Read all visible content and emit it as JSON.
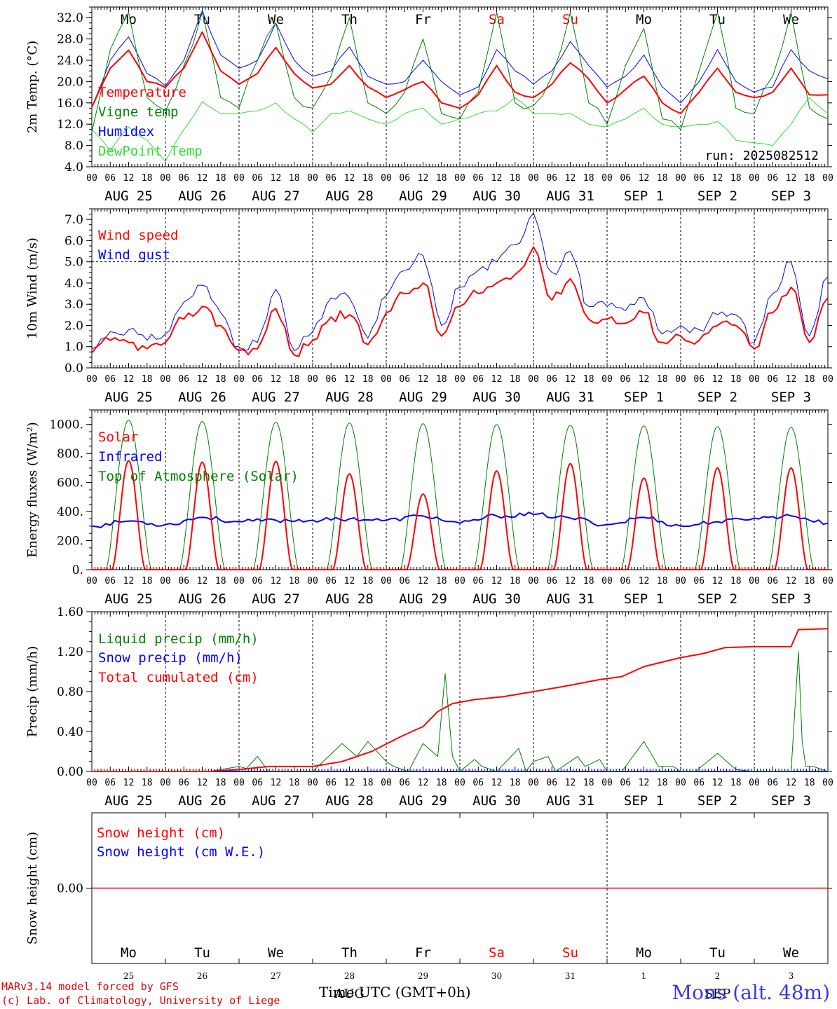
{
  "run_label": "run: 2025082512",
  "station": "Mons (alt. 48m)",
  "xlabel": "Time UTC (GMT+0h)",
  "footer": [
    "MARv3.14 model forced by GFS",
    "(c) Lab. of Climatology, University of Liege"
  ],
  "hour_ticks": [
    "00",
    "06",
    "12",
    "18"
  ],
  "date_labels": [
    "AUG 25",
    "AUG 26",
    "AUG 27",
    "AUG 28",
    "AUG 29",
    "AUG 30",
    "AUG 31",
    "SEP  1",
    "SEP  2",
    "SEP  3"
  ],
  "day_labels": [
    "Mo",
    "Tu",
    "We",
    "Th",
    "Fr",
    "Sa",
    "Su",
    "Mo",
    "Tu",
    "We"
  ],
  "weekend_days": [
    5,
    6
  ],
  "bottom_day_numbers": [
    "25",
    "26",
    "27",
    "28",
    "29",
    "30",
    "31",
    "1",
    "2",
    "3"
  ],
  "bottom_month_labels": [
    "AUG",
    "SEP"
  ],
  "colors": {
    "red": "#ff0000",
    "green": "#008000",
    "blue": "#0000ff",
    "lightgreen": "#33dd33"
  },
  "chart_data": [
    {
      "type": "line",
      "ylabel": "2m Temp. (°C)",
      "ylim": [
        4,
        34
      ],
      "yticks": [
        "4.0",
        "8.0",
        "12.0",
        "16.0",
        "20.0",
        "24.0",
        "28.0",
        "32.0"
      ],
      "x_days": [
        0,
        0.25,
        0.5,
        0.75,
        1,
        1.25,
        1.5,
        1.75,
        2,
        2.25,
        2.5,
        2.75,
        3,
        3.25,
        3.5,
        3.75,
        4,
        4.25,
        4.5,
        4.75,
        5,
        5.25,
        5.5,
        5.75,
        6,
        6.25,
        6.5,
        6.75,
        7,
        7.25,
        7.5,
        7.75,
        8,
        8.25,
        8.5,
        8.75,
        9,
        9.25,
        9.5,
        9.75,
        10
      ],
      "series": [
        {
          "name": "Temperature",
          "color": "red",
          "values": [
            15.2,
            22.5,
            25.9,
            20.0,
            18.9,
            22.5,
            29.3,
            22.0,
            19.5,
            21.5,
            26.4,
            21.5,
            18.8,
            19.5,
            23.0,
            19.0,
            17.0,
            18.5,
            20.0,
            16.0,
            15.0,
            17.5,
            23.0,
            18.0,
            17.0,
            19.5,
            23.5,
            20.5,
            16.0,
            18.5,
            21.0,
            16.0,
            14.0,
            18.0,
            22.5,
            18.0,
            17.0,
            18.0,
            22.5,
            17.5,
            17.5
          ]
        },
        {
          "name": "Vigne temp",
          "color": "green",
          "values": [
            10.5,
            26.0,
            33.0,
            17.0,
            14.5,
            23.0,
            33.0,
            17.0,
            15.0,
            24.0,
            31.0,
            17.0,
            15.0,
            21.0,
            32.0,
            16.0,
            14.0,
            18.0,
            28.0,
            14.0,
            13.0,
            18.0,
            33.0,
            16.0,
            15.5,
            21.0,
            33.0,
            16.0,
            12.0,
            23.0,
            30.0,
            13.0,
            11.0,
            22.0,
            33.0,
            15.0,
            14.0,
            21.0,
            33.0,
            15.0,
            13.0
          ]
        },
        {
          "name": "Humidex",
          "color": "blue",
          "values": [
            15.2,
            24.0,
            28.4,
            21.5,
            19.2,
            24.0,
            33.3,
            25.0,
            22.5,
            24.0,
            31.0,
            24.0,
            21.0,
            22.0,
            26.5,
            21.0,
            19.5,
            20.0,
            24.0,
            20.0,
            17.5,
            19.0,
            26.0,
            22.0,
            19.5,
            22.0,
            27.5,
            23.0,
            19.0,
            21.0,
            25.0,
            19.0,
            16.0,
            20.0,
            26.0,
            20.0,
            18.0,
            19.0,
            26.0,
            22.0,
            20.5
          ]
        },
        {
          "name": "DewPoint Temp",
          "color": "lightgreen",
          "values": [
            11.0,
            7.0,
            11.5,
            9.0,
            5.0,
            11.0,
            16.2,
            14.0,
            14.0,
            14.5,
            16.0,
            13.0,
            10.5,
            14.0,
            14.5,
            13.0,
            12.0,
            14.0,
            15.0,
            12.0,
            13.0,
            14.0,
            14.5,
            17.0,
            14.0,
            14.0,
            14.0,
            12.0,
            11.5,
            13.0,
            15.0,
            12.0,
            11.5,
            12.0,
            12.5,
            9.0,
            8.5,
            8.0,
            12.0,
            17.0,
            14.0
          ]
        }
      ]
    },
    {
      "type": "line",
      "ylabel": "10m Wind (m/s)",
      "ylim": [
        0,
        7.5
      ],
      "yticks": [
        "0.0",
        "1.0",
        "2.0",
        "3.0",
        "4.0",
        "5.0",
        "6.0",
        "7.0"
      ],
      "reference_line": 5.0,
      "x_days": [
        0,
        0.25,
        0.5,
        0.75,
        1,
        1.25,
        1.5,
        1.75,
        2,
        2.25,
        2.5,
        2.75,
        3,
        3.25,
        3.5,
        3.75,
        4,
        4.25,
        4.5,
        4.75,
        5,
        5.25,
        5.5,
        5.75,
        6,
        6.25,
        6.5,
        6.75,
        7,
        7.25,
        7.5,
        7.75,
        8,
        8.25,
        8.5,
        8.75,
        9,
        9.25,
        9.5,
        9.75,
        10
      ],
      "series": [
        {
          "name": "Wind speed",
          "color": "red",
          "values": [
            0.7,
            1.3,
            1.2,
            0.9,
            1.2,
            2.3,
            2.9,
            2.0,
            0.8,
            0.9,
            2.8,
            0.6,
            1.3,
            2.4,
            2.5,
            1.1,
            2.6,
            3.5,
            4.0,
            1.5,
            2.9,
            3.5,
            4.0,
            4.4,
            5.7,
            3.2,
            4.2,
            2.3,
            2.3,
            2.1,
            2.6,
            1.2,
            1.5,
            1.3,
            2.0,
            2.0,
            0.9,
            2.6,
            3.8,
            1.2,
            3.3
          ]
        },
        {
          "name": "Wind gust",
          "color": "blue",
          "values": [
            0.9,
            1.7,
            1.8,
            1.3,
            1.6,
            3.1,
            3.9,
            2.6,
            1.0,
            1.2,
            3.7,
            0.8,
            1.7,
            3.3,
            3.3,
            1.4,
            3.4,
            4.6,
            5.3,
            2.0,
            3.8,
            4.6,
            5.0,
            5.8,
            7.3,
            4.5,
            5.5,
            2.9,
            2.9,
            2.7,
            3.3,
            1.6,
            2.0,
            1.8,
            2.5,
            2.5,
            1.2,
            3.5,
            5.0,
            1.5,
            4.3
          ]
        }
      ]
    },
    {
      "type": "line",
      "ylabel": "Energy fluxes (W/m²)",
      "ylim": [
        0,
        1100
      ],
      "yticks": [
        "0.",
        "200.",
        "400.",
        "600.",
        "800.",
        "1000."
      ],
      "day_peaks": {
        "Top of Atmosphere (Solar)": [
          1030,
          1020,
          1015,
          1010,
          1005,
          1000,
          995,
          990,
          985,
          980
        ],
        "Solar": [
          750,
          740,
          745,
          660,
          520,
          680,
          730,
          630,
          700,
          700
        ]
      },
      "series": [
        {
          "name": "Solar",
          "color": "red"
        },
        {
          "name": "Infrared",
          "color": "blue",
          "x_days": [
            0,
            0.5,
            1,
            1.5,
            2,
            2.5,
            3,
            3.5,
            4,
            4.5,
            5,
            5.5,
            6,
            6.5,
            7,
            7.5,
            8,
            8.5,
            9,
            9.5,
            10
          ],
          "values": [
            300,
            335,
            310,
            360,
            330,
            340,
            340,
            350,
            340,
            370,
            320,
            370,
            380,
            355,
            310,
            360,
            300,
            330,
            355,
            370,
            320
          ]
        },
        {
          "name": "Top of Atmosphere (Solar)",
          "color": "green"
        }
      ]
    },
    {
      "type": "line",
      "ylabel": "Precip (mm/h)",
      "ylim": [
        0,
        1.6
      ],
      "yticks": [
        "0.00",
        "0.40",
        "0.80",
        "1.20",
        "1.60"
      ],
      "series": [
        {
          "name": "Liquid precip (mm/h)",
          "color": "green",
          "x_days": [
            0,
            1.6,
            2.0,
            2.1,
            2.25,
            2.4,
            3.0,
            3.4,
            3.6,
            3.75,
            4.0,
            4.1,
            4.3,
            4.5,
            4.7,
            4.8,
            4.9,
            5.0,
            5.2,
            5.3,
            5.5,
            5.8,
            5.9,
            6.0,
            6.2,
            6.3,
            6.6,
            6.7,
            6.9,
            7.0,
            7.2,
            7.5,
            7.7,
            7.9,
            8.0,
            8.2,
            8.5,
            8.75,
            9.0,
            9.5,
            9.6,
            9.65,
            9.7,
            9.8,
            10
          ],
          "values": [
            0,
            0,
            0.05,
            0.03,
            0.15,
            0,
            0,
            0.28,
            0.15,
            0.3,
            0.1,
            0.05,
            0,
            0.28,
            0.15,
            0.98,
            0.15,
            0,
            0.12,
            0.05,
            0,
            0.23,
            0,
            0.1,
            0.15,
            0,
            0.15,
            0.05,
            0.12,
            0,
            0,
            0.3,
            0.05,
            0.05,
            0,
            0,
            0.18,
            0.02,
            0,
            0,
            1.2,
            0.3,
            0.05,
            0.05,
            0
          ]
        },
        {
          "name": "Snow precip (mm/h)",
          "color": "blue",
          "x_days": [
            0,
            10
          ],
          "values": [
            0,
            0
          ]
        },
        {
          "name": "Total cumulated (cm)",
          "color": "red",
          "x_days": [
            0,
            1.6,
            2.0,
            2.4,
            3.0,
            3.4,
            3.8,
            4.2,
            4.5,
            4.7,
            4.9,
            5.2,
            5.6,
            6.0,
            6.4,
            6.9,
            7.2,
            7.5,
            8.0,
            8.3,
            8.6,
            9.0,
            9.5,
            9.6,
            10
          ],
          "values": [
            0,
            0,
            0.02,
            0.05,
            0.05,
            0.1,
            0.2,
            0.35,
            0.45,
            0.6,
            0.68,
            0.72,
            0.75,
            0.8,
            0.85,
            0.92,
            0.95,
            1.05,
            1.14,
            1.18,
            1.24,
            1.25,
            1.25,
            1.42,
            1.43
          ]
        }
      ]
    },
    {
      "type": "line",
      "ylabel": "Snow height (cm)",
      "yticks": [
        "0.00"
      ],
      "series": [
        {
          "name": "Snow height (cm)",
          "color": "red",
          "x_days": [
            0,
            10
          ],
          "values": [
            0,
            0
          ]
        },
        {
          "name": "Snow height (cm W.E.)",
          "color": "blue",
          "x_days": [
            0,
            10
          ],
          "values": [
            0,
            0
          ]
        }
      ]
    }
  ]
}
